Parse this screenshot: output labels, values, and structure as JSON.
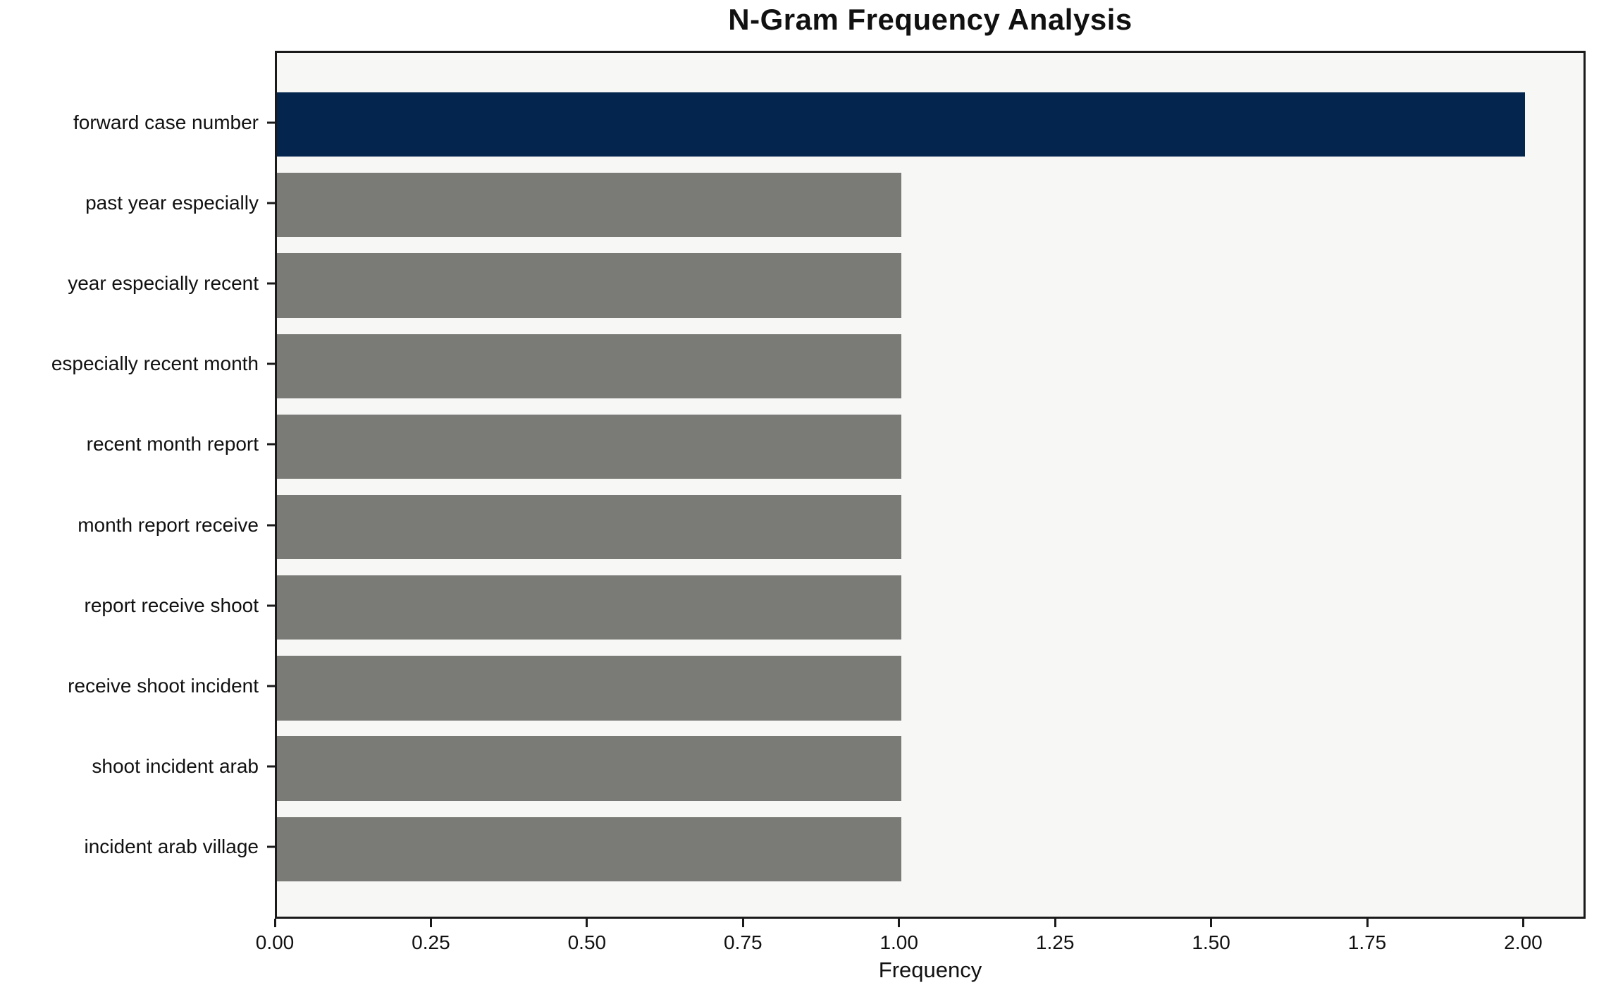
{
  "chart_data": {
    "type": "bar",
    "orientation": "horizontal",
    "title": "N-Gram Frequency Analysis",
    "xlabel": "Frequency",
    "ylabel": "",
    "categories": [
      "forward case number",
      "past year especially",
      "year especially recent",
      "especially recent month",
      "recent month report",
      "month report receive",
      "report receive shoot",
      "receive shoot incident",
      "shoot incident arab",
      "incident arab village"
    ],
    "values": [
      2,
      1,
      1,
      1,
      1,
      1,
      1,
      1,
      1,
      1
    ],
    "highlight_index": 0,
    "xlim": [
      0,
      2.1
    ],
    "x_ticks": [
      "0.00",
      "0.25",
      "0.50",
      "0.75",
      "1.00",
      "1.25",
      "1.50",
      "1.75",
      "2.00"
    ],
    "x_tick_values": [
      0,
      0.25,
      0.5,
      0.75,
      1.0,
      1.25,
      1.5,
      1.75,
      2.0
    ],
    "grid": false,
    "legend": "none",
    "bar_height_fraction": 0.8,
    "colors": {
      "highlight_bar": "#03254e",
      "default_bar": "#7a7a77",
      "plot_background": "#f7f7f6",
      "figure_background": "#ffffff",
      "spine": "#1a1a1a",
      "text": "#111111"
    }
  }
}
